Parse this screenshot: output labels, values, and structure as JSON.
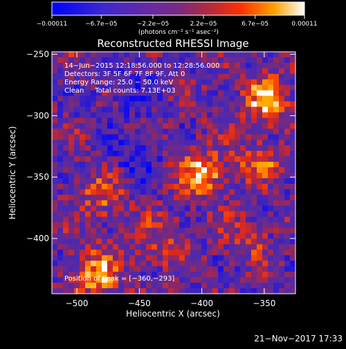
{
  "chart_data": {
    "type": "heatmap",
    "title": "Reconstructed RHESSI Image",
    "xlabel": "Heliocentric X (arcsec)",
    "ylabel": "Heliocentric Y (arcsec)",
    "xlim": [
      -520,
      -325
    ],
    "ylim": [
      -445,
      -248
    ],
    "x_ticks": [
      -500,
      -450,
      -400,
      -350
    ],
    "x_tick_labels": [
      "−500",
      "−450",
      "−400",
      "−350"
    ],
    "y_ticks": [
      -250,
      -300,
      -350,
      -400
    ],
    "y_tick_labels": [
      "−250",
      "−300",
      "−350",
      "−400"
    ],
    "colorbar": {
      "unit_label": "(photons cm⁻² s⁻¹ asec⁻²)",
      "ticks": [
        -0.00011,
        -6.7e-05,
        -2.2e-05,
        2.2e-05,
        6.7e-05,
        0.00011
      ],
      "tick_labels": [
        "−0.00011",
        "−6.7e−05",
        "−2.2e−05",
        "2.2e−05",
        "6.7e−05",
        "0.00011"
      ],
      "range": [
        -0.00011,
        0.00011
      ]
    },
    "info_lines": [
      "14−Jun−2015 12:18:56.000 to 12:28:56.000",
      "Detectors: 3F 5F 6F 7F 8F 9F, Att 0",
      "Energy Range: 25.0 − 50.0 keV",
      "Clean     Total counts: 7.13E+03"
    ],
    "peak_label": "Position of Peak = [−360,−293]",
    "peak_position": [
      -360,
      -293
    ],
    "timestamp": "21−Nov−2017 17:33",
    "colors": {
      "background": "#000000",
      "negative_deep": "#0000ff",
      "neutral": "#5a2a9a",
      "positive_mid": "#ff4000",
      "positive_high": "#ffffff"
    }
  }
}
